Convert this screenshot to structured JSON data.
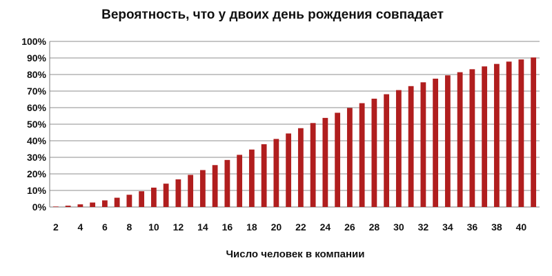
{
  "chart_data": {
    "type": "bar",
    "title": "Вероятность, что у двоих день рождения совпадает",
    "xlabel": "Число человек в компании",
    "ylabel": "",
    "categories": [
      2,
      3,
      4,
      5,
      6,
      7,
      8,
      9,
      10,
      11,
      12,
      13,
      14,
      15,
      16,
      17,
      18,
      19,
      20,
      21,
      22,
      23,
      24,
      25,
      26,
      27,
      28,
      29,
      30,
      31,
      32,
      33,
      34,
      35,
      36,
      37,
      38,
      39,
      40,
      41
    ],
    "x_tick_labels": [
      "2",
      "4",
      "6",
      "8",
      "10",
      "12",
      "14",
      "16",
      "18",
      "20",
      "22",
      "24",
      "26",
      "28",
      "30",
      "32",
      "34",
      "36",
      "38",
      "40"
    ],
    "values": [
      0.3,
      0.8,
      1.6,
      2.7,
      4.0,
      5.6,
      7.4,
      9.5,
      11.7,
      14.1,
      16.7,
      19.4,
      22.3,
      25.3,
      28.4,
      31.5,
      34.7,
      37.9,
      41.1,
      44.4,
      47.6,
      50.7,
      53.8,
      56.9,
      59.8,
      62.7,
      65.4,
      68.1,
      70.6,
      73.0,
      75.3,
      77.5,
      79.5,
      81.4,
      83.2,
      84.9,
      86.4,
      87.8,
      89.1,
      90.3
    ],
    "y_tick_labels": [
      "0%",
      "10%",
      "20%",
      "30%",
      "40%",
      "50%",
      "60%",
      "70%",
      "80%",
      "90%",
      "100%"
    ],
    "ylim": [
      0,
      100
    ],
    "grid": true,
    "legend": "none",
    "bar_color": "#b01e1e"
  }
}
